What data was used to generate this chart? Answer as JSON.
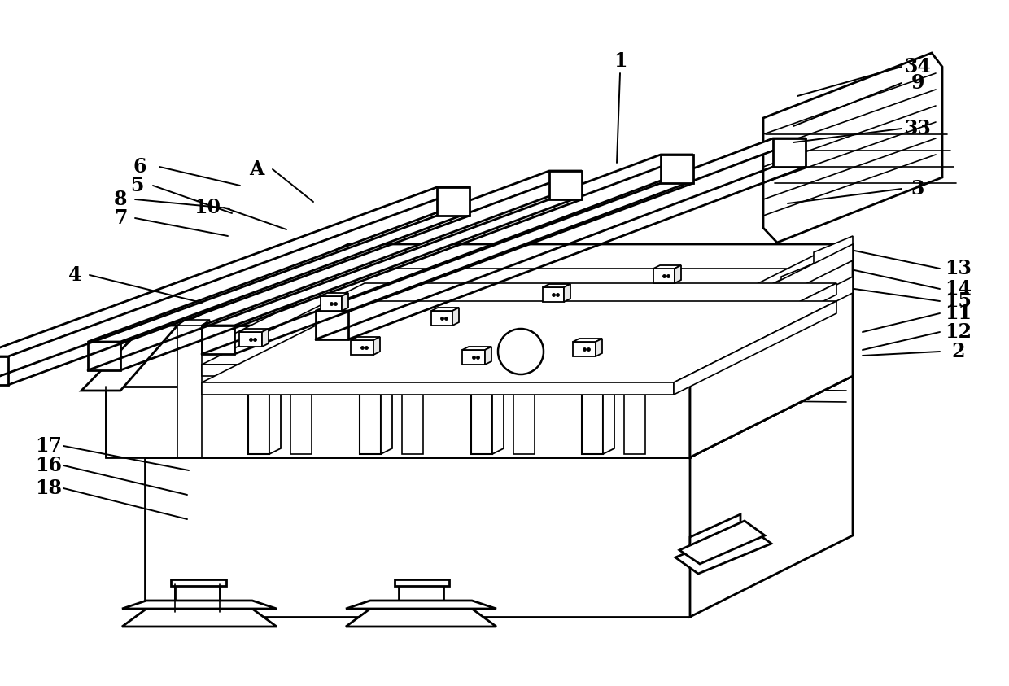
{
  "bg": "#ffffff",
  "lc": "#000000",
  "lw": 2.0,
  "lw_thin": 1.2,
  "leaders": [
    [
      "1",
      762,
      75,
      762,
      90,
      758,
      200
    ],
    [
      "2",
      1178,
      432,
      1155,
      432,
      1060,
      437
    ],
    [
      "3",
      1128,
      232,
      1108,
      232,
      968,
      250
    ],
    [
      "4",
      92,
      338,
      110,
      338,
      248,
      372
    ],
    [
      "5",
      168,
      228,
      188,
      228,
      285,
      262
    ],
    [
      "6",
      172,
      205,
      196,
      205,
      295,
      228
    ],
    [
      "7",
      148,
      268,
      166,
      268,
      280,
      290
    ],
    [
      "8",
      148,
      245,
      166,
      245,
      282,
      256
    ],
    [
      "9",
      1128,
      102,
      1108,
      102,
      975,
      155
    ],
    [
      "10",
      255,
      255,
      275,
      255,
      352,
      282
    ],
    [
      "11",
      1178,
      385,
      1155,
      385,
      1060,
      408
    ],
    [
      "12",
      1178,
      408,
      1155,
      408,
      1060,
      430
    ],
    [
      "13",
      1178,
      330,
      1155,
      330,
      1050,
      308
    ],
    [
      "14",
      1178,
      355,
      1155,
      355,
      1050,
      332
    ],
    [
      "15",
      1178,
      370,
      1155,
      370,
      1050,
      355
    ],
    [
      "16",
      60,
      572,
      78,
      572,
      230,
      608
    ],
    [
      "17",
      60,
      548,
      78,
      548,
      232,
      578
    ],
    [
      "18",
      60,
      600,
      78,
      600,
      230,
      638
    ],
    [
      "33",
      1128,
      158,
      1108,
      158,
      975,
      175
    ],
    [
      "34",
      1128,
      82,
      1108,
      82,
      980,
      118
    ],
    [
      "A",
      315,
      208,
      335,
      208,
      385,
      248
    ]
  ]
}
